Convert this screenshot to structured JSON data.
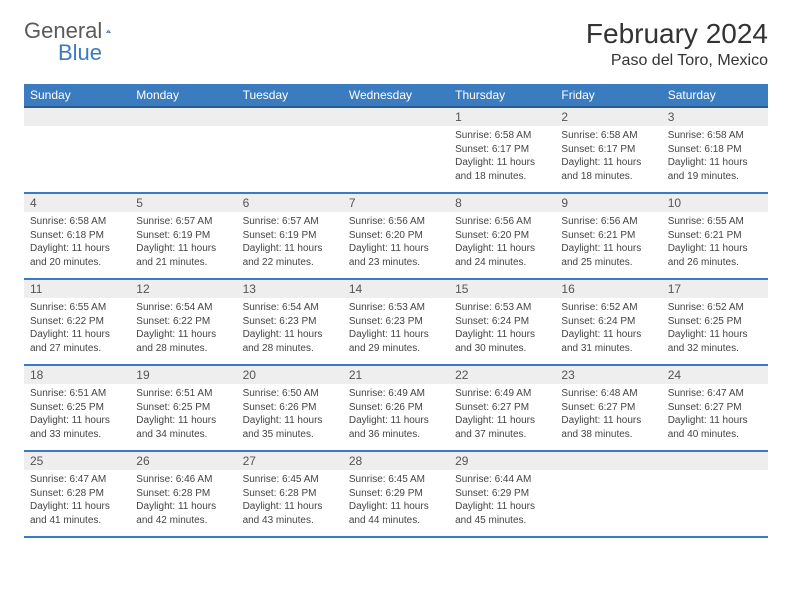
{
  "logo": {
    "general": "General",
    "blue": "Blue"
  },
  "title": "February 2024",
  "location": "Paso del Toro, Mexico",
  "colors": {
    "header_bg": "#3b7bbf",
    "header_border": "#2a5d8f",
    "row_border": "#3b7bbf",
    "daynum_bg": "#eeeeee",
    "text": "#333333",
    "logo_gray": "#5a5a5a",
    "logo_blue": "#3b7bbf"
  },
  "daynames": [
    "Sunday",
    "Monday",
    "Tuesday",
    "Wednesday",
    "Thursday",
    "Friday",
    "Saturday"
  ],
  "weeks": [
    [
      null,
      null,
      null,
      null,
      {
        "n": "1",
        "sr": "6:58 AM",
        "ss": "6:17 PM",
        "dl": "11 hours and 18 minutes."
      },
      {
        "n": "2",
        "sr": "6:58 AM",
        "ss": "6:17 PM",
        "dl": "11 hours and 18 minutes."
      },
      {
        "n": "3",
        "sr": "6:58 AM",
        "ss": "6:18 PM",
        "dl": "11 hours and 19 minutes."
      }
    ],
    [
      {
        "n": "4",
        "sr": "6:58 AM",
        "ss": "6:18 PM",
        "dl": "11 hours and 20 minutes."
      },
      {
        "n": "5",
        "sr": "6:57 AM",
        "ss": "6:19 PM",
        "dl": "11 hours and 21 minutes."
      },
      {
        "n": "6",
        "sr": "6:57 AM",
        "ss": "6:19 PM",
        "dl": "11 hours and 22 minutes."
      },
      {
        "n": "7",
        "sr": "6:56 AM",
        "ss": "6:20 PM",
        "dl": "11 hours and 23 minutes."
      },
      {
        "n": "8",
        "sr": "6:56 AM",
        "ss": "6:20 PM",
        "dl": "11 hours and 24 minutes."
      },
      {
        "n": "9",
        "sr": "6:56 AM",
        "ss": "6:21 PM",
        "dl": "11 hours and 25 minutes."
      },
      {
        "n": "10",
        "sr": "6:55 AM",
        "ss": "6:21 PM",
        "dl": "11 hours and 26 minutes."
      }
    ],
    [
      {
        "n": "11",
        "sr": "6:55 AM",
        "ss": "6:22 PM",
        "dl": "11 hours and 27 minutes."
      },
      {
        "n": "12",
        "sr": "6:54 AM",
        "ss": "6:22 PM",
        "dl": "11 hours and 28 minutes."
      },
      {
        "n": "13",
        "sr": "6:54 AM",
        "ss": "6:23 PM",
        "dl": "11 hours and 28 minutes."
      },
      {
        "n": "14",
        "sr": "6:53 AM",
        "ss": "6:23 PM",
        "dl": "11 hours and 29 minutes."
      },
      {
        "n": "15",
        "sr": "6:53 AM",
        "ss": "6:24 PM",
        "dl": "11 hours and 30 minutes."
      },
      {
        "n": "16",
        "sr": "6:52 AM",
        "ss": "6:24 PM",
        "dl": "11 hours and 31 minutes."
      },
      {
        "n": "17",
        "sr": "6:52 AM",
        "ss": "6:25 PM",
        "dl": "11 hours and 32 minutes."
      }
    ],
    [
      {
        "n": "18",
        "sr": "6:51 AM",
        "ss": "6:25 PM",
        "dl": "11 hours and 33 minutes."
      },
      {
        "n": "19",
        "sr": "6:51 AM",
        "ss": "6:25 PM",
        "dl": "11 hours and 34 minutes."
      },
      {
        "n": "20",
        "sr": "6:50 AM",
        "ss": "6:26 PM",
        "dl": "11 hours and 35 minutes."
      },
      {
        "n": "21",
        "sr": "6:49 AM",
        "ss": "6:26 PM",
        "dl": "11 hours and 36 minutes."
      },
      {
        "n": "22",
        "sr": "6:49 AM",
        "ss": "6:27 PM",
        "dl": "11 hours and 37 minutes."
      },
      {
        "n": "23",
        "sr": "6:48 AM",
        "ss": "6:27 PM",
        "dl": "11 hours and 38 minutes."
      },
      {
        "n": "24",
        "sr": "6:47 AM",
        "ss": "6:27 PM",
        "dl": "11 hours and 40 minutes."
      }
    ],
    [
      {
        "n": "25",
        "sr": "6:47 AM",
        "ss": "6:28 PM",
        "dl": "11 hours and 41 minutes."
      },
      {
        "n": "26",
        "sr": "6:46 AM",
        "ss": "6:28 PM",
        "dl": "11 hours and 42 minutes."
      },
      {
        "n": "27",
        "sr": "6:45 AM",
        "ss": "6:28 PM",
        "dl": "11 hours and 43 minutes."
      },
      {
        "n": "28",
        "sr": "6:45 AM",
        "ss": "6:29 PM",
        "dl": "11 hours and 44 minutes."
      },
      {
        "n": "29",
        "sr": "6:44 AM",
        "ss": "6:29 PM",
        "dl": "11 hours and 45 minutes."
      },
      null,
      null
    ]
  ],
  "labels": {
    "sunrise": "Sunrise:",
    "sunset": "Sunset:",
    "daylight": "Daylight:"
  }
}
